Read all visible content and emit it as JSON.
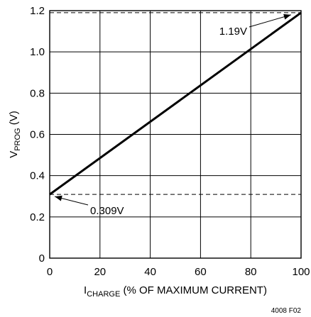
{
  "chart_data": {
    "type": "line",
    "xlabel_main": "I",
    "xlabel_sub": "CHARGE",
    "xlabel_rest": " (% OF MAXIMUM CURRENT)",
    "ylabel_main": "V",
    "ylabel_sub": "PROG",
    "ylabel_rest": " (V)",
    "xlim": [
      0,
      100
    ],
    "ylim": [
      0,
      1.2
    ],
    "x_ticks": [
      "0",
      "20",
      "40",
      "60",
      "80",
      "100"
    ],
    "y_ticks": [
      "0",
      "0.2",
      "0.4",
      "0.6",
      "0.8",
      "1.0",
      "1.2"
    ],
    "grid": true,
    "series": [
      {
        "x": [
          0,
          100
        ],
        "y": [
          0.309,
          1.19
        ]
      }
    ],
    "reference_lines": [
      {
        "y": 1.19,
        "label": "1.19V"
      },
      {
        "y": 0.309,
        "label": "0.309V"
      }
    ],
    "figure_id": "4008 F02"
  }
}
